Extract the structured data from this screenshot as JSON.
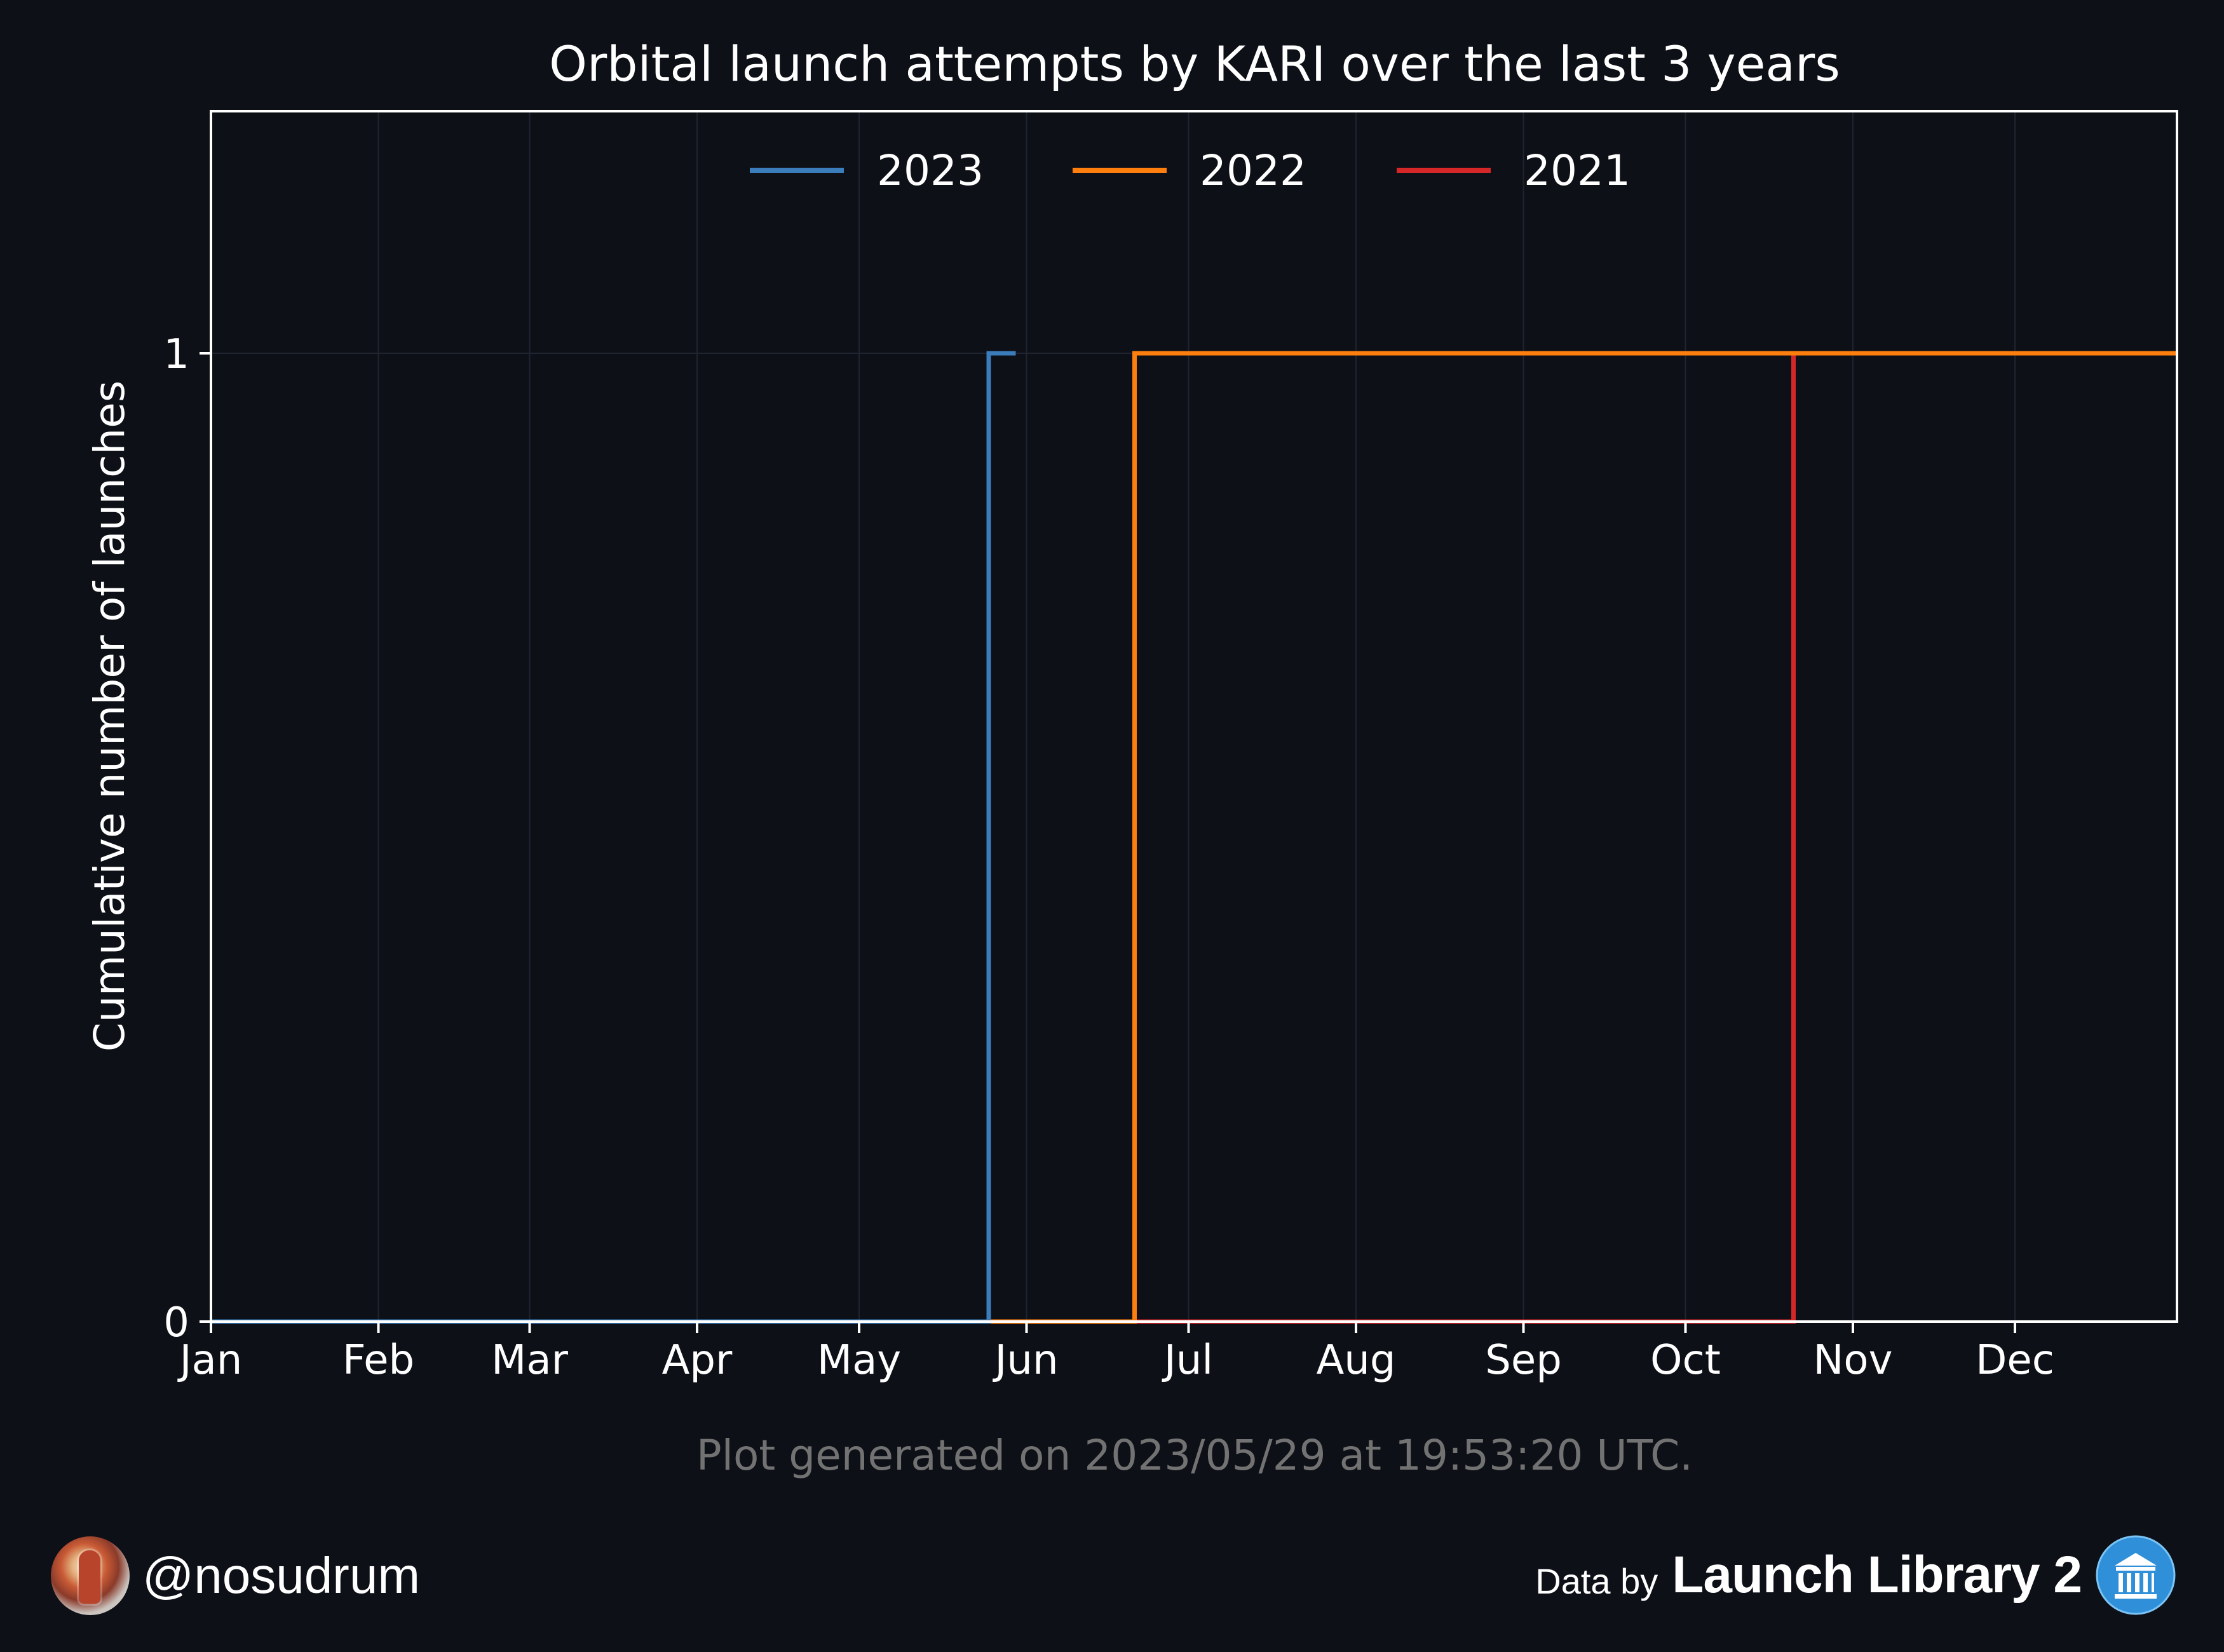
{
  "chart_data": {
    "type": "line",
    "step": true,
    "title": "Orbital launch attempts by KARI over the last 3 years",
    "xlabel": "",
    "ylabel": "Cumulative number of launches",
    "x_tick_labels": [
      "Jan",
      "Feb",
      "Mar",
      "Apr",
      "May",
      "Jun",
      "Jul",
      "Aug",
      "Sep",
      "Oct",
      "Nov",
      "Dec"
    ],
    "y_ticks": [
      0,
      1
    ],
    "ylim": [
      0,
      1.25
    ],
    "grid": true,
    "legend": "top-center",
    "series": [
      {
        "name": "2023",
        "color": "#3b7dba",
        "points": [
          [
            "01-01",
            0
          ],
          [
            "05-25",
            0
          ],
          [
            "05-25",
            1
          ],
          [
            "05-30",
            1
          ]
        ]
      },
      {
        "name": "2022",
        "color": "#ff7f0e",
        "points": [
          [
            "01-01",
            0
          ],
          [
            "06-21",
            0
          ],
          [
            "06-21",
            1
          ],
          [
            "12-31",
            1
          ]
        ]
      },
      {
        "name": "2021",
        "color": "#d62728",
        "points": [
          [
            "01-01",
            0
          ],
          [
            "10-21",
            0
          ],
          [
            "10-21",
            1
          ],
          [
            "12-31",
            1
          ]
        ]
      }
    ],
    "note": "Plot generated on 2023/05/29 at 19:53:20 UTC."
  },
  "colors": {
    "background": "#0d1017",
    "axis": "#ffffff",
    "grid": "#1f2430",
    "note": "#727272"
  },
  "footer": {
    "handle": "@nosudrum",
    "data_by": "Data by",
    "source": "Launch Library 2",
    "source_icon": "institution-icon",
    "avatar_icon": "astronaut-avatar"
  }
}
